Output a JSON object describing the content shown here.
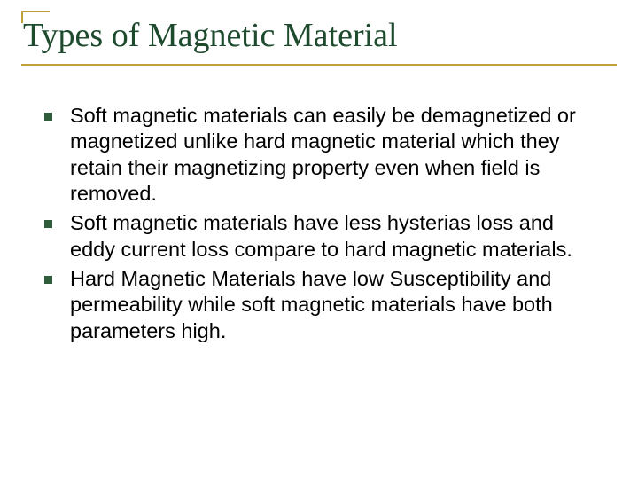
{
  "slide": {
    "title": "Types of Magnetic Material",
    "bullets": [
      "Soft magnetic materials can easily be demagnetized or magnetized unlike hard magnetic material which they retain their magnetizing property even when field is removed.",
      "Soft magnetic materials have less hysterias loss and eddy current loss compare to hard magnetic materials.",
      "Hard Magnetic Materials have low Susceptibility and permeability while soft magnetic materials have both parameters high."
    ]
  },
  "style": {
    "background_color": "#ffffff",
    "title_color": "#1e4a2e",
    "title_fontsize": 38,
    "title_font_family": "Times New Roman",
    "rule_color": "#bfa13a",
    "rule_width": 2,
    "body_color": "#000000",
    "body_fontsize": 23.5,
    "body_font_family": "Arial",
    "bullet_marker_color": "#2f5c3a",
    "bullet_marker_size": 9,
    "slide_width": 720,
    "slide_height": 540
  }
}
